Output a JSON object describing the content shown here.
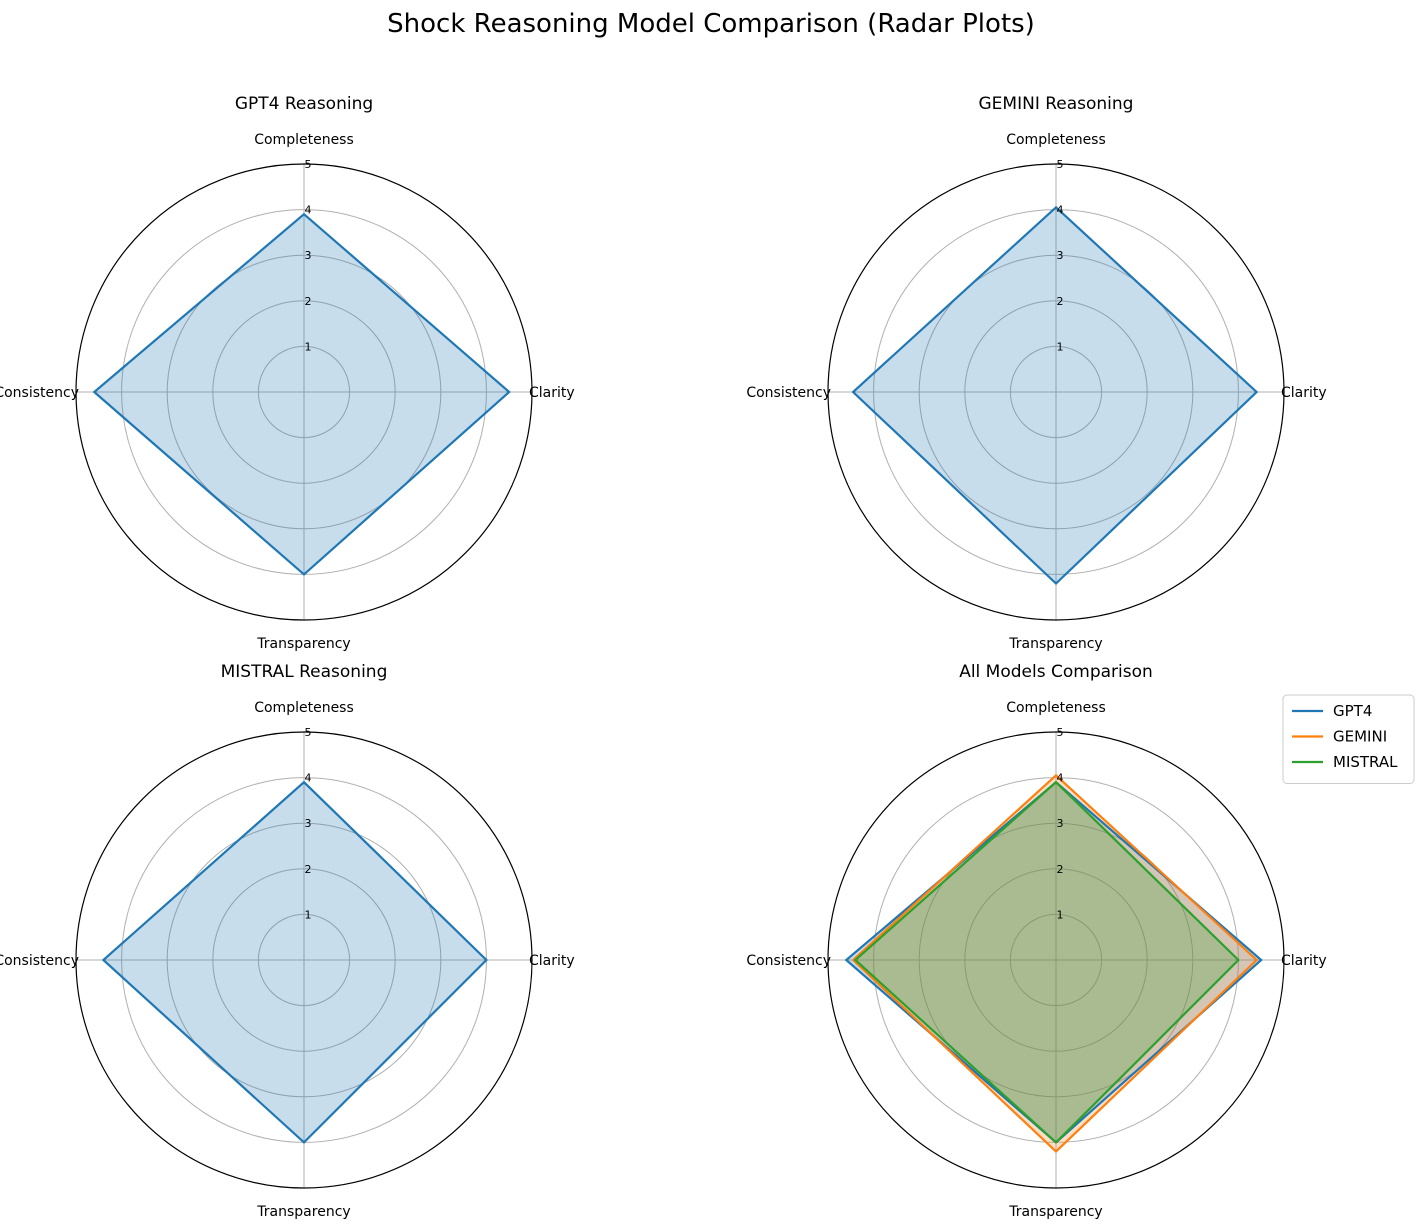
{
  "figure": {
    "title": "Shock Reasoning Model Comparison (Radar Plots)"
  },
  "chart_data": [
    {
      "type": "radar",
      "title": "GPT4 Reasoning",
      "categories": [
        "Completeness",
        "Clarity",
        "Transparency",
        "Consistency"
      ],
      "rlim": [
        0,
        5
      ],
      "rticks": [
        "1",
        "2",
        "3",
        "4",
        "5"
      ],
      "grid": true,
      "series": [
        {
          "values": [
            3.9,
            4.5,
            4.0,
            4.6
          ],
          "color": "#1f77b4",
          "fill": true
        }
      ]
    },
    {
      "type": "radar",
      "title": "GEMINI Reasoning",
      "categories": [
        "Completeness",
        "Clarity",
        "Transparency",
        "Consistency"
      ],
      "rlim": [
        0,
        5
      ],
      "rticks": [
        "1",
        "2",
        "3",
        "4",
        "5"
      ],
      "grid": true,
      "series": [
        {
          "values": [
            4.05,
            4.4,
            4.2,
            4.45
          ],
          "color": "#1f77b4",
          "fill": true
        }
      ]
    },
    {
      "type": "radar",
      "title": "MISTRAL Reasoning",
      "categories": [
        "Completeness",
        "Clarity",
        "Transparency",
        "Consistency"
      ],
      "rlim": [
        0,
        5
      ],
      "rticks": [
        "1",
        "2",
        "3",
        "4",
        "5"
      ],
      "grid": true,
      "series": [
        {
          "values": [
            3.9,
            4.0,
            4.0,
            4.4
          ],
          "color": "#1f77b4",
          "fill": true
        }
      ]
    },
    {
      "type": "radar",
      "title": "All Models Comparison",
      "categories": [
        "Completeness",
        "Clarity",
        "Transparency",
        "Consistency"
      ],
      "rlim": [
        0,
        5
      ],
      "rticks": [
        "1",
        "2",
        "3",
        "4",
        "5"
      ],
      "grid": true,
      "legend": "upper-right-outside",
      "series": [
        {
          "name": "GPT4",
          "values": [
            3.9,
            4.5,
            4.0,
            4.6
          ],
          "color": "#1f77b4",
          "fill": true
        },
        {
          "name": "GEMINI",
          "values": [
            4.05,
            4.4,
            4.2,
            4.45
          ],
          "color": "#ff7f0e",
          "fill": true
        },
        {
          "name": "MISTRAL",
          "values": [
            3.9,
            4.0,
            4.0,
            4.4
          ],
          "color": "#2ca02c",
          "fill": true
        }
      ]
    }
  ]
}
